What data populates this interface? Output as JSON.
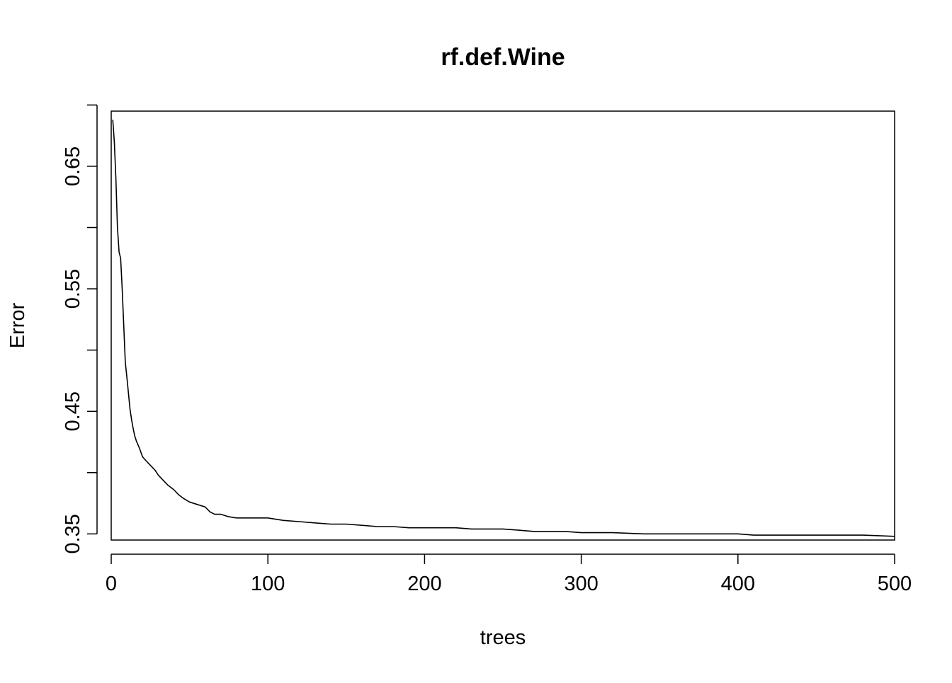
{
  "chart_data": {
    "type": "line",
    "title": "rf.def.Wine",
    "xlabel": "trees",
    "ylabel": "Error",
    "xlim": [
      0,
      500
    ],
    "ylim": [
      0.345,
      0.695
    ],
    "xticks": [
      0,
      100,
      200,
      300,
      400,
      500
    ],
    "xtick_labels": [
      "0",
      "100",
      "200",
      "300",
      "400",
      "500"
    ],
    "yticks": [
      0.35,
      0.4,
      0.45,
      0.5,
      0.55,
      0.6,
      0.65,
      0.7
    ],
    "ytick_labels": [
      "0.35",
      "",
      "0.45",
      "",
      "0.55",
      "",
      "0.65",
      ""
    ],
    "grid": false,
    "legend": "none",
    "line_color": "#000000",
    "series": [
      {
        "x": [
          1,
          2,
          3,
          4,
          5,
          6,
          7,
          8,
          9,
          10,
          11,
          12,
          13,
          14,
          15,
          16,
          18,
          20,
          22,
          25,
          28,
          30,
          33,
          36,
          40,
          43,
          46,
          50,
          55,
          60,
          63,
          66,
          70,
          75,
          80,
          85,
          90,
          95,
          100,
          105,
          110,
          120,
          130,
          140,
          150,
          160,
          170,
          180,
          190,
          200,
          210,
          220,
          230,
          240,
          250,
          260,
          270,
          280,
          290,
          300,
          320,
          340,
          360,
          380,
          400,
          410,
          420,
          440,
          460,
          480,
          500
        ],
        "y": [
          0.688,
          0.67,
          0.64,
          0.6,
          0.58,
          0.575,
          0.55,
          0.52,
          0.49,
          0.478,
          0.465,
          0.452,
          0.443,
          0.436,
          0.43,
          0.426,
          0.42,
          0.413,
          0.41,
          0.406,
          0.402,
          0.398,
          0.394,
          0.39,
          0.386,
          0.382,
          0.379,
          0.376,
          0.374,
          0.372,
          0.368,
          0.366,
          0.366,
          0.364,
          0.363,
          0.363,
          0.363,
          0.363,
          0.363,
          0.362,
          0.361,
          0.36,
          0.359,
          0.358,
          0.358,
          0.357,
          0.356,
          0.356,
          0.355,
          0.355,
          0.355,
          0.355,
          0.354,
          0.354,
          0.354,
          0.353,
          0.352,
          0.352,
          0.352,
          0.351,
          0.351,
          0.35,
          0.35,
          0.35,
          0.35,
          0.349,
          0.349,
          0.349,
          0.349,
          0.349,
          0.348
        ]
      }
    ]
  }
}
